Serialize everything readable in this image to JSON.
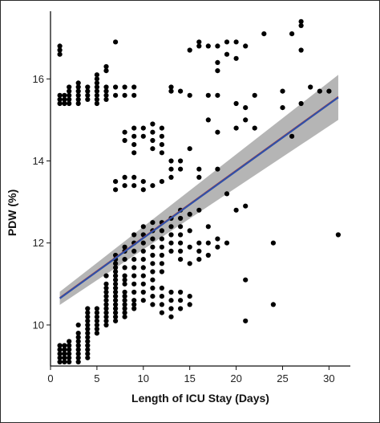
{
  "chart_data": {
    "type": "scatter",
    "xlabel": "Length of ICU Stay (Days)",
    "ylabel": "PDW (%)",
    "xlim": [
      0,
      32.3
    ],
    "ylim": [
      9.0,
      17.65
    ],
    "x_ticks": [
      0,
      5,
      10,
      15,
      20,
      25,
      30
    ],
    "y_ticks": [
      10,
      12,
      14,
      16
    ],
    "grid": false,
    "colors": {
      "points": "#000000",
      "fit_line": "#3050a8",
      "confidence_band": "#a8a8a8"
    },
    "fit": {
      "x": [
        1,
        31
      ],
      "y": [
        10.65,
        15.55
      ],
      "band_halfwidth": [
        0.16,
        0.55
      ]
    },
    "points": [
      {
        "x": 1,
        "y": 9.1
      },
      {
        "x": 1,
        "y": 9.2
      },
      {
        "x": 1,
        "y": 9.3
      },
      {
        "x": 1,
        "y": 9.4
      },
      {
        "x": 1,
        "y": 9.5
      },
      {
        "x": 1,
        "y": 15.4
      },
      {
        "x": 1,
        "y": 15.5
      },
      {
        "x": 1,
        "y": 15.6
      },
      {
        "x": 1,
        "y": 16.6
      },
      {
        "x": 1,
        "y": 16.7
      },
      {
        "x": 1,
        "y": 16.8
      },
      {
        "x": 1.5,
        "y": 9.1
      },
      {
        "x": 1.5,
        "y": 9.2
      },
      {
        "x": 1.5,
        "y": 9.3
      },
      {
        "x": 1.5,
        "y": 9.4
      },
      {
        "x": 1.5,
        "y": 9.5
      },
      {
        "x": 1.5,
        "y": 15.4
      },
      {
        "x": 1.5,
        "y": 15.5
      },
      {
        "x": 1.5,
        "y": 15.6
      },
      {
        "x": 2,
        "y": 9.1
      },
      {
        "x": 2,
        "y": 9.2
      },
      {
        "x": 2,
        "y": 9.3
      },
      {
        "x": 2,
        "y": 9.4
      },
      {
        "x": 2,
        "y": 9.5
      },
      {
        "x": 2,
        "y": 9.6
      },
      {
        "x": 2,
        "y": 15.4
      },
      {
        "x": 2,
        "y": 15.5
      },
      {
        "x": 2,
        "y": 15.6
      },
      {
        "x": 2,
        "y": 15.7
      },
      {
        "x": 2,
        "y": 15.8
      },
      {
        "x": 3,
        "y": 9.1
      },
      {
        "x": 3,
        "y": 9.2
      },
      {
        "x": 3,
        "y": 9.3
      },
      {
        "x": 3,
        "y": 9.4
      },
      {
        "x": 3,
        "y": 9.5
      },
      {
        "x": 3,
        "y": 9.6
      },
      {
        "x": 3,
        "y": 9.7
      },
      {
        "x": 3,
        "y": 9.8
      },
      {
        "x": 3,
        "y": 10.0
      },
      {
        "x": 3,
        "y": 15.4
      },
      {
        "x": 3,
        "y": 15.5
      },
      {
        "x": 3,
        "y": 15.6
      },
      {
        "x": 3,
        "y": 15.7
      },
      {
        "x": 3,
        "y": 15.8
      },
      {
        "x": 3,
        "y": 15.9
      },
      {
        "x": 4,
        "y": 9.2
      },
      {
        "x": 4,
        "y": 9.3
      },
      {
        "x": 4,
        "y": 9.4
      },
      {
        "x": 4,
        "y": 9.5
      },
      {
        "x": 4,
        "y": 9.6
      },
      {
        "x": 4,
        "y": 9.7
      },
      {
        "x": 4,
        "y": 9.8
      },
      {
        "x": 4,
        "y": 9.9
      },
      {
        "x": 4,
        "y": 10.0
      },
      {
        "x": 4,
        "y": 10.1
      },
      {
        "x": 4,
        "y": 10.2
      },
      {
        "x": 4,
        "y": 10.3
      },
      {
        "x": 4,
        "y": 10.4
      },
      {
        "x": 4,
        "y": 15.5
      },
      {
        "x": 4,
        "y": 15.6
      },
      {
        "x": 4,
        "y": 15.7
      },
      {
        "x": 4,
        "y": 15.8
      },
      {
        "x": 5,
        "y": 9.8
      },
      {
        "x": 5,
        "y": 9.9
      },
      {
        "x": 5,
        "y": 10.0
      },
      {
        "x": 5,
        "y": 10.1
      },
      {
        "x": 5,
        "y": 10.2
      },
      {
        "x": 5,
        "y": 10.3
      },
      {
        "x": 5,
        "y": 10.4
      },
      {
        "x": 5,
        "y": 15.4
      },
      {
        "x": 5,
        "y": 15.5
      },
      {
        "x": 5,
        "y": 15.6
      },
      {
        "x": 5,
        "y": 15.7
      },
      {
        "x": 5,
        "y": 15.8
      },
      {
        "x": 5,
        "y": 15.9
      },
      {
        "x": 5,
        "y": 16.0
      },
      {
        "x": 5,
        "y": 16.1
      },
      {
        "x": 6,
        "y": 10.0
      },
      {
        "x": 6,
        "y": 10.1
      },
      {
        "x": 6,
        "y": 10.2
      },
      {
        "x": 6,
        "y": 10.3
      },
      {
        "x": 6,
        "y": 10.4
      },
      {
        "x": 6,
        "y": 10.5
      },
      {
        "x": 6,
        "y": 10.6
      },
      {
        "x": 6,
        "y": 10.7
      },
      {
        "x": 6,
        "y": 10.8
      },
      {
        "x": 6,
        "y": 10.9
      },
      {
        "x": 6,
        "y": 11.0
      },
      {
        "x": 6,
        "y": 11.2
      },
      {
        "x": 6,
        "y": 15.5
      },
      {
        "x": 6,
        "y": 15.6
      },
      {
        "x": 6,
        "y": 15.7
      },
      {
        "x": 6,
        "y": 15.8
      },
      {
        "x": 6,
        "y": 16.2
      },
      {
        "x": 6,
        "y": 16.3
      },
      {
        "x": 7,
        "y": 10.1
      },
      {
        "x": 7,
        "y": 10.2
      },
      {
        "x": 7,
        "y": 10.3
      },
      {
        "x": 7,
        "y": 10.4
      },
      {
        "x": 7,
        "y": 10.5
      },
      {
        "x": 7,
        "y": 10.6
      },
      {
        "x": 7,
        "y": 10.7
      },
      {
        "x": 7,
        "y": 10.8
      },
      {
        "x": 7,
        "y": 10.9
      },
      {
        "x": 7,
        "y": 11.0
      },
      {
        "x": 7,
        "y": 11.1
      },
      {
        "x": 7,
        "y": 11.2
      },
      {
        "x": 7,
        "y": 11.3
      },
      {
        "x": 7,
        "y": 11.4
      },
      {
        "x": 7,
        "y": 11.5
      },
      {
        "x": 7,
        "y": 11.6
      },
      {
        "x": 7,
        "y": 11.7
      },
      {
        "x": 7,
        "y": 13.3
      },
      {
        "x": 7,
        "y": 13.5
      },
      {
        "x": 7,
        "y": 15.6
      },
      {
        "x": 7,
        "y": 15.8
      },
      {
        "x": 7,
        "y": 16.9
      },
      {
        "x": 8,
        "y": 10.2
      },
      {
        "x": 8,
        "y": 10.3
      },
      {
        "x": 8,
        "y": 10.4
      },
      {
        "x": 8,
        "y": 10.5
      },
      {
        "x": 8,
        "y": 10.6
      },
      {
        "x": 8,
        "y": 10.7
      },
      {
        "x": 8,
        "y": 10.8
      },
      {
        "x": 8,
        "y": 11.0
      },
      {
        "x": 8,
        "y": 11.1
      },
      {
        "x": 8,
        "y": 11.2
      },
      {
        "x": 8,
        "y": 11.4
      },
      {
        "x": 8,
        "y": 11.6
      },
      {
        "x": 8,
        "y": 11.8
      },
      {
        "x": 8,
        "y": 11.9
      },
      {
        "x": 8,
        "y": 13.4
      },
      {
        "x": 8,
        "y": 13.6
      },
      {
        "x": 8,
        "y": 14.5
      },
      {
        "x": 8,
        "y": 14.7
      },
      {
        "x": 8,
        "y": 15.6
      },
      {
        "x": 8,
        "y": 15.8
      },
      {
        "x": 9,
        "y": 10.4
      },
      {
        "x": 9,
        "y": 10.5
      },
      {
        "x": 9,
        "y": 10.6
      },
      {
        "x": 9,
        "y": 10.8
      },
      {
        "x": 9,
        "y": 11.0
      },
      {
        "x": 9,
        "y": 11.2
      },
      {
        "x": 9,
        "y": 11.4
      },
      {
        "x": 9,
        "y": 11.6
      },
      {
        "x": 9,
        "y": 11.8
      },
      {
        "x": 9,
        "y": 12.0
      },
      {
        "x": 9,
        "y": 12.2
      },
      {
        "x": 9,
        "y": 13.4
      },
      {
        "x": 9,
        "y": 13.6
      },
      {
        "x": 9,
        "y": 14.2
      },
      {
        "x": 9,
        "y": 14.4
      },
      {
        "x": 9,
        "y": 14.6
      },
      {
        "x": 9,
        "y": 14.8
      },
      {
        "x": 9,
        "y": 15.6
      },
      {
        "x": 9,
        "y": 15.8
      },
      {
        "x": 10,
        "y": 10.6
      },
      {
        "x": 10,
        "y": 10.8
      },
      {
        "x": 10,
        "y": 11.0
      },
      {
        "x": 10,
        "y": 11.2
      },
      {
        "x": 10,
        "y": 11.4
      },
      {
        "x": 10,
        "y": 11.6
      },
      {
        "x": 10,
        "y": 11.8
      },
      {
        "x": 10,
        "y": 12.0
      },
      {
        "x": 10,
        "y": 12.2
      },
      {
        "x": 10,
        "y": 12.4
      },
      {
        "x": 10,
        "y": 13.3
      },
      {
        "x": 10,
        "y": 13.5
      },
      {
        "x": 10,
        "y": 14.6
      },
      {
        "x": 10,
        "y": 14.8
      },
      {
        "x": 11,
        "y": 10.5
      },
      {
        "x": 11,
        "y": 10.7
      },
      {
        "x": 11,
        "y": 10.9
      },
      {
        "x": 11,
        "y": 11.1
      },
      {
        "x": 11,
        "y": 11.3
      },
      {
        "x": 11,
        "y": 11.5
      },
      {
        "x": 11,
        "y": 11.7
      },
      {
        "x": 11,
        "y": 11.9
      },
      {
        "x": 11,
        "y": 12.1
      },
      {
        "x": 11,
        "y": 12.3
      },
      {
        "x": 11,
        "y": 12.5
      },
      {
        "x": 11,
        "y": 13.4
      },
      {
        "x": 11,
        "y": 14.3
      },
      {
        "x": 11,
        "y": 14.5
      },
      {
        "x": 11,
        "y": 14.7
      },
      {
        "x": 11,
        "y": 14.9
      },
      {
        "x": 12,
        "y": 10.3
      },
      {
        "x": 12,
        "y": 10.5
      },
      {
        "x": 12,
        "y": 10.7
      },
      {
        "x": 12,
        "y": 10.9
      },
      {
        "x": 12,
        "y": 11.3
      },
      {
        "x": 12,
        "y": 11.5
      },
      {
        "x": 12,
        "y": 11.7
      },
      {
        "x": 12,
        "y": 11.9
      },
      {
        "x": 12,
        "y": 12.1
      },
      {
        "x": 12,
        "y": 12.3
      },
      {
        "x": 12,
        "y": 12.5
      },
      {
        "x": 12,
        "y": 13.5
      },
      {
        "x": 12,
        "y": 14.2
      },
      {
        "x": 12,
        "y": 14.4
      },
      {
        "x": 12,
        "y": 14.6
      },
      {
        "x": 12,
        "y": 14.8
      },
      {
        "x": 13,
        "y": 10.2
      },
      {
        "x": 13,
        "y": 10.4
      },
      {
        "x": 13,
        "y": 10.6
      },
      {
        "x": 13,
        "y": 10.8
      },
      {
        "x": 13,
        "y": 11.8
      },
      {
        "x": 13,
        "y": 12.0
      },
      {
        "x": 13,
        "y": 12.2
      },
      {
        "x": 13,
        "y": 12.4
      },
      {
        "x": 13,
        "y": 12.6
      },
      {
        "x": 13,
        "y": 13.6
      },
      {
        "x": 13,
        "y": 13.8
      },
      {
        "x": 13,
        "y": 14.0
      },
      {
        "x": 13,
        "y": 15.7
      },
      {
        "x": 13,
        "y": 15.8
      },
      {
        "x": 14,
        "y": 10.4
      },
      {
        "x": 14,
        "y": 10.6
      },
      {
        "x": 14,
        "y": 10.8
      },
      {
        "x": 14,
        "y": 11.6
      },
      {
        "x": 14,
        "y": 11.8
      },
      {
        "x": 14,
        "y": 12.0
      },
      {
        "x": 14,
        "y": 12.2
      },
      {
        "x": 14,
        "y": 12.4
      },
      {
        "x": 14,
        "y": 12.6
      },
      {
        "x": 14,
        "y": 12.8
      },
      {
        "x": 14,
        "y": 13.8
      },
      {
        "x": 14,
        "y": 14.0
      },
      {
        "x": 14,
        "y": 15.7
      },
      {
        "x": 15,
        "y": 10.5
      },
      {
        "x": 15,
        "y": 10.7
      },
      {
        "x": 15,
        "y": 11.5
      },
      {
        "x": 15,
        "y": 11.9
      },
      {
        "x": 15,
        "y": 12.3
      },
      {
        "x": 15,
        "y": 12.7
      },
      {
        "x": 15,
        "y": 14.3
      },
      {
        "x": 15,
        "y": 15.6
      },
      {
        "x": 15,
        "y": 16.7
      },
      {
        "x": 16,
        "y": 11.6
      },
      {
        "x": 16,
        "y": 11.8
      },
      {
        "x": 16,
        "y": 12.0
      },
      {
        "x": 16,
        "y": 12.8
      },
      {
        "x": 16,
        "y": 13.6
      },
      {
        "x": 16,
        "y": 13.8
      },
      {
        "x": 16,
        "y": 16.8
      },
      {
        "x": 16,
        "y": 16.9
      },
      {
        "x": 17,
        "y": 11.7
      },
      {
        "x": 17,
        "y": 12.0
      },
      {
        "x": 17,
        "y": 12.4
      },
      {
        "x": 17,
        "y": 15.0
      },
      {
        "x": 17,
        "y": 15.6
      },
      {
        "x": 17,
        "y": 16.8
      },
      {
        "x": 18,
        "y": 11.9
      },
      {
        "x": 18,
        "y": 12.1
      },
      {
        "x": 18,
        "y": 13.8
      },
      {
        "x": 18,
        "y": 14.7
      },
      {
        "x": 18,
        "y": 15.6
      },
      {
        "x": 18,
        "y": 16.2
      },
      {
        "x": 18,
        "y": 16.4
      },
      {
        "x": 18,
        "y": 16.8
      },
      {
        "x": 19,
        "y": 12.0
      },
      {
        "x": 19,
        "y": 13.2
      },
      {
        "x": 19,
        "y": 16.6
      },
      {
        "x": 19,
        "y": 16.9
      },
      {
        "x": 20,
        "y": 12.8
      },
      {
        "x": 20,
        "y": 14.8
      },
      {
        "x": 20,
        "y": 15.4
      },
      {
        "x": 20,
        "y": 16.5
      },
      {
        "x": 20,
        "y": 16.9
      },
      {
        "x": 21,
        "y": 10.1
      },
      {
        "x": 21,
        "y": 11.1
      },
      {
        "x": 21,
        "y": 12.9
      },
      {
        "x": 21,
        "y": 15.0
      },
      {
        "x": 21,
        "y": 15.3
      },
      {
        "x": 21,
        "y": 16.8
      },
      {
        "x": 22,
        "y": 14.8
      },
      {
        "x": 22,
        "y": 15.6
      },
      {
        "x": 23,
        "y": 17.1
      },
      {
        "x": 24,
        "y": 10.5
      },
      {
        "x": 24,
        "y": 12.0
      },
      {
        "x": 25,
        "y": 15.3
      },
      {
        "x": 25,
        "y": 15.7
      },
      {
        "x": 26,
        "y": 14.6
      },
      {
        "x": 26,
        "y": 17.1
      },
      {
        "x": 27,
        "y": 15.4
      },
      {
        "x": 27,
        "y": 16.7
      },
      {
        "x": 27,
        "y": 17.3
      },
      {
        "x": 27,
        "y": 17.4
      },
      {
        "x": 28,
        "y": 15.8
      },
      {
        "x": 29,
        "y": 15.7
      },
      {
        "x": 30,
        "y": 15.7
      },
      {
        "x": 31,
        "y": 12.2
      }
    ]
  }
}
